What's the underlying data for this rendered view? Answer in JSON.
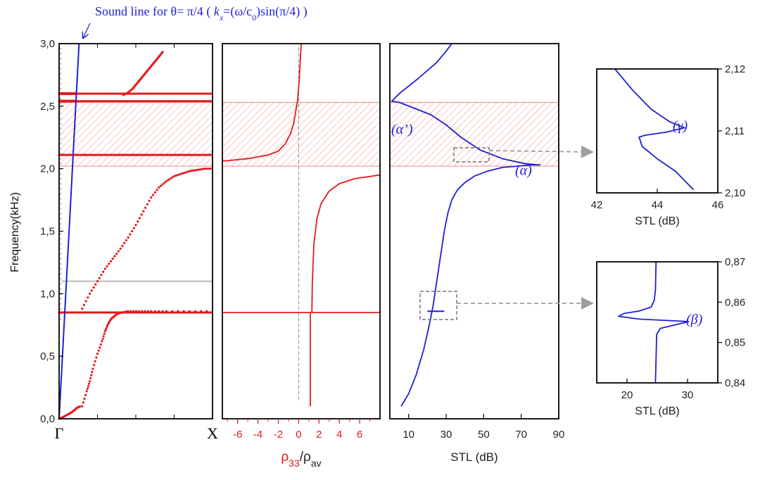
{
  "title_annotation": {
    "prefix": "Sound line for θ= π/4 ( ",
    "kx": "k",
    "kx_sub": "x",
    "middle": "=(ω/c",
    "c_sub": "0",
    "suffix": ")sin(π/4) )"
  },
  "y_axis_label": "Frequency(kHz)",
  "colors": {
    "red": "#e31a1c",
    "blue": "#1f1fd6",
    "gray": "#bdbdbd",
    "hatch": "#f3a0a0"
  },
  "chart_data": [
    {
      "name": "band-structure",
      "type": "scatter",
      "xlabels": [
        "Γ",
        "X"
      ],
      "y_ticks": [
        "0,0",
        "0,5",
        "1,0",
        "1,5",
        "2,0",
        "2,5",
        "3,0"
      ],
      "ylim": [
        0,
        3
      ],
      "hatched_band": [
        2.02,
        2.53
      ],
      "flat_bands_red": [
        0.85,
        2.11,
        2.54,
        2.6
      ],
      "flat_band_gray": 1.1,
      "series": [
        {
          "color": "red",
          "x": [
            0.15,
            0.18,
            0.2,
            0.22,
            0.25,
            0.28,
            0.3,
            0.32,
            0.34,
            0.36,
            0.38,
            0.41,
            0.45,
            0.52,
            0.6,
            0.7,
            0.85,
            1.0
          ],
          "y": [
            0.1,
            0.22,
            0.3,
            0.4,
            0.52,
            0.62,
            0.7,
            0.76,
            0.8,
            0.82,
            0.84,
            0.85,
            0.86,
            0.86,
            0.86,
            0.86,
            0.86,
            0.86
          ]
        },
        {
          "color": "red",
          "x": [
            0.0,
            0.02,
            0.05,
            0.08,
            0.1,
            0.12,
            0.14
          ],
          "y": [
            0.0,
            0.01,
            0.03,
            0.05,
            0.07,
            0.09,
            0.1
          ]
        },
        {
          "color": "red",
          "x": [
            0.15,
            0.2,
            0.25,
            0.3,
            0.35,
            0.4,
            0.45,
            0.5,
            0.55,
            0.6,
            0.65,
            0.7,
            0.75,
            0.8,
            0.85,
            0.9,
            0.95,
            1.0
          ],
          "y": [
            0.88,
            1.0,
            1.1,
            1.2,
            1.28,
            1.36,
            1.45,
            1.55,
            1.66,
            1.77,
            1.85,
            1.9,
            1.94,
            1.96,
            1.98,
            1.99,
            2.0,
            2.0
          ]
        },
        {
          "color": "red",
          "x": [
            0.42,
            0.45,
            0.48,
            0.5,
            0.52,
            0.54,
            0.56,
            0.58,
            0.6,
            0.62,
            0.64,
            0.66,
            0.68
          ],
          "y": [
            2.59,
            2.61,
            2.64,
            2.67,
            2.7,
            2.73,
            2.76,
            2.79,
            2.82,
            2.85,
            2.88,
            2.91,
            2.94
          ]
        }
      ],
      "sound_line": {
        "x": [
          0.0,
          0.13
        ],
        "y": [
          0.0,
          3.0
        ]
      }
    },
    {
      "name": "density",
      "type": "line",
      "xlabel": "ρ33/ρav",
      "xlabel_main": "ρ",
      "xlabel_main_sub": "33",
      "xlabel_slash": "/ρ",
      "xlabel_den_sub": "av",
      "xlim": [
        -7.5,
        8
      ],
      "x_ticks": [
        "-6",
        "-4",
        "-2",
        "0",
        "2",
        "4",
        "6"
      ],
      "x_tick_values": [
        -6,
        -4,
        -2,
        0,
        2,
        4,
        6
      ],
      "ylim": [
        0,
        3
      ],
      "hatched_band": [
        2.02,
        2.53
      ],
      "branches": [
        {
          "x": [
            -7.5,
            -5,
            -3,
            -2,
            -1.3,
            -0.8,
            -0.5,
            -0.3,
            -0.1,
            0.05,
            0.15,
            0.25
          ],
          "y": [
            2.06,
            2.08,
            2.11,
            2.14,
            2.2,
            2.28,
            2.36,
            2.45,
            2.55,
            2.7,
            2.85,
            3.0
          ]
        },
        {
          "x": [
            1.3,
            1.35,
            1.5,
            1.8,
            2.2,
            3.0,
            4.0,
            5.5,
            8.0
          ],
          "y": [
            0.85,
            1.1,
            1.4,
            1.6,
            1.72,
            1.82,
            1.88,
            1.92,
            1.95
          ]
        },
        {
          "x": [
            1.15,
            1.15
          ],
          "y": [
            0.1,
            0.85
          ]
        }
      ],
      "horizontal_line_y": 0.85
    },
    {
      "name": "stl",
      "type": "line",
      "xlabel": "STL (dB)",
      "xlim": [
        0,
        90
      ],
      "x_ticks": [
        "10",
        "30",
        "50",
        "70",
        "90"
      ],
      "x_tick_values": [
        10,
        30,
        50,
        70,
        90
      ],
      "ylim": [
        0,
        3
      ],
      "hatched_band": [
        2.02,
        2.53
      ],
      "series": [
        {
          "x": [
            6,
            10,
            14,
            18,
            21,
            23,
            25,
            27,
            29,
            31,
            33,
            36,
            40,
            45,
            52,
            60,
            68,
            75,
            80,
            72,
            60,
            48,
            38,
            30,
            22,
            12,
            5,
            1,
            5,
            15,
            25,
            30,
            33
          ],
          "y": [
            0.1,
            0.2,
            0.35,
            0.55,
            0.75,
            0.9,
            1.1,
            1.3,
            1.5,
            1.65,
            1.75,
            1.83,
            1.89,
            1.94,
            1.98,
            2.01,
            2.02,
            2.03,
            2.03,
            2.04,
            2.08,
            2.15,
            2.25,
            2.35,
            2.43,
            2.49,
            2.53,
            2.54,
            2.6,
            2.72,
            2.85,
            2.94,
            3.0
          ]
        }
      ],
      "annotations": [
        {
          "text": "(α’)",
          "x": 0,
          "y": 2.28
        },
        {
          "text": "(α)",
          "x": 66,
          "y": 1.95
        }
      ]
    },
    {
      "name": "inset-gamma",
      "type": "line",
      "xlabel": "STL (dB)",
      "xlim": [
        42,
        46
      ],
      "x_ticks": [
        "42",
        "44",
        "46"
      ],
      "x_tick_values": [
        42,
        44,
        46
      ],
      "ylim": [
        2.1,
        2.12
      ],
      "y_ticks": [
        "2,10",
        "2,11",
        "2,12"
      ],
      "y_tick_values": [
        2.1,
        2.11,
        2.12
      ],
      "series": [
        {
          "x": [
            42.6,
            43.2,
            43.8,
            44.4,
            44.9,
            44.3,
            43.6,
            43.4,
            43.5,
            44.0,
            44.6,
            45.2
          ],
          "y": [
            2.12,
            2.1165,
            2.1135,
            2.1115,
            2.1105,
            2.1098,
            2.1093,
            2.109,
            2.1075,
            2.1055,
            2.1035,
            2.1005
          ]
        }
      ],
      "annotation": "(γ)"
    },
    {
      "name": "inset-beta",
      "type": "line",
      "xlabel": "STL (dB)",
      "xlim": [
        15,
        35
      ],
      "x_ticks": [
        "20",
        "30"
      ],
      "x_tick_values": [
        20,
        30
      ],
      "ylim": [
        0.84,
        0.87
      ],
      "y_ticks": [
        "0,84",
        "0,85",
        "0,86",
        "0,87"
      ],
      "y_tick_values": [
        0.84,
        0.85,
        0.86,
        0.87
      ],
      "series": [
        {
          "x": [
            24.8,
            24.7,
            24.5,
            24.0,
            22.0,
            19.5,
            18.6,
            22.0,
            30.2,
            25.5,
            24.9,
            24.8,
            24.7
          ],
          "y": [
            0.87,
            0.863,
            0.8605,
            0.8588,
            0.8578,
            0.8572,
            0.8565,
            0.8558,
            0.8552,
            0.8535,
            0.852,
            0.846,
            0.84
          ]
        }
      ],
      "annotation": "(β)"
    }
  ]
}
